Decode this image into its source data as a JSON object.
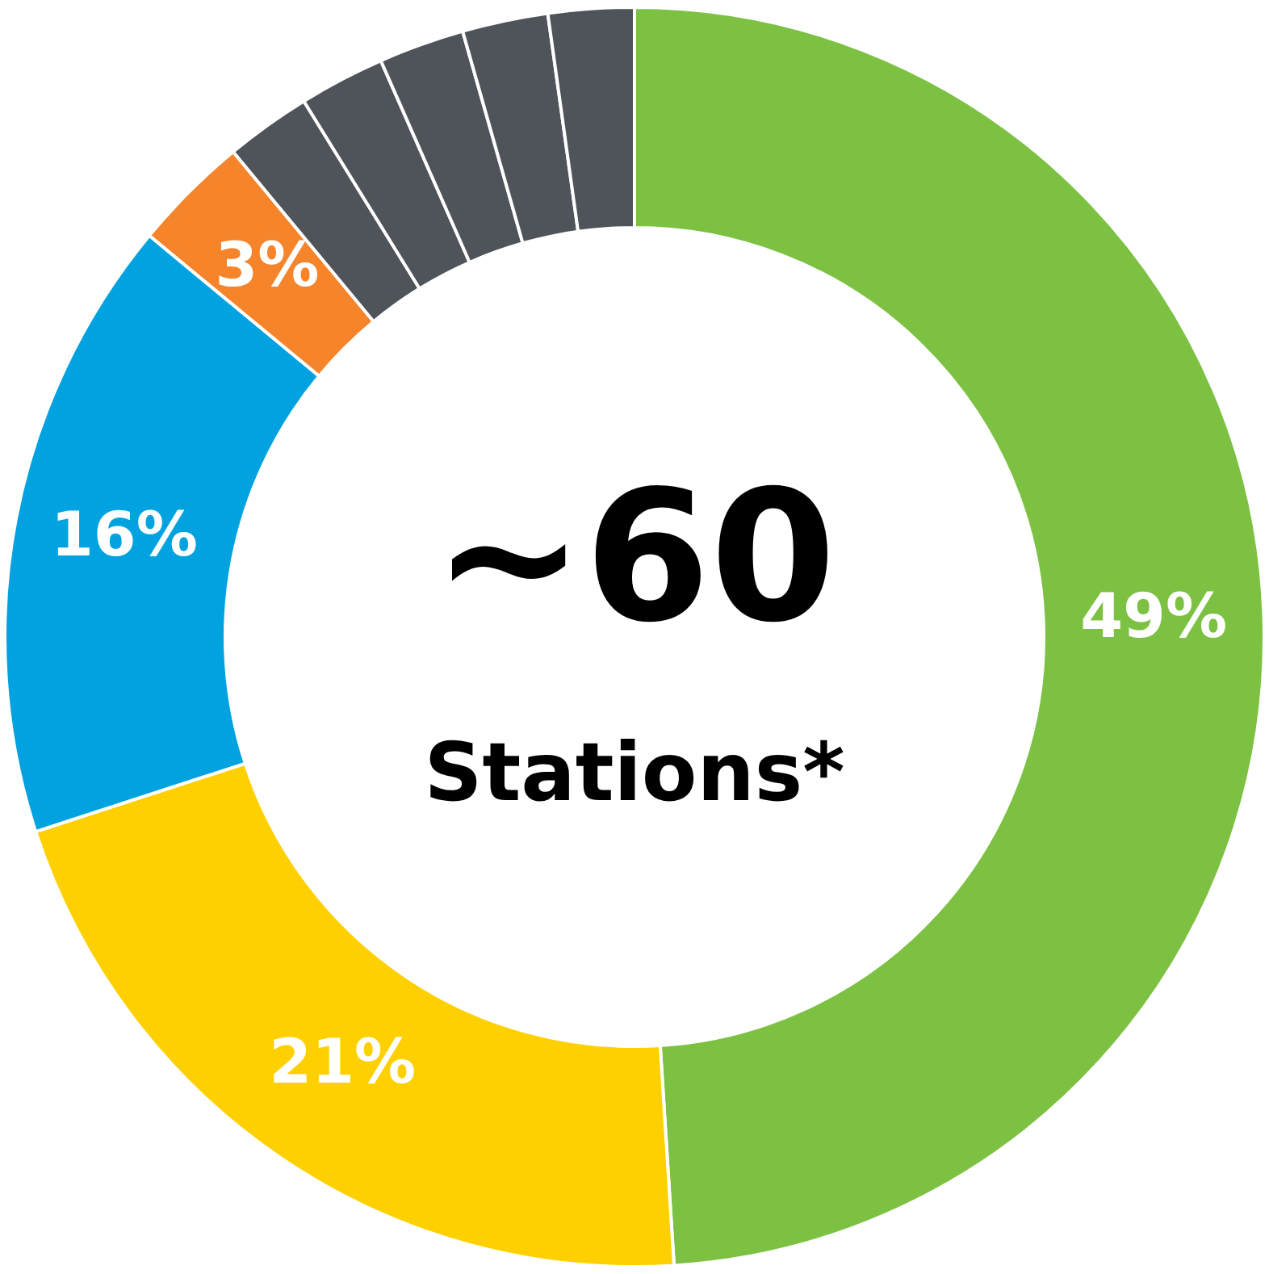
{
  "chart_data": {
    "type": "donut",
    "categories": [
      null,
      null,
      null,
      null,
      null,
      null,
      null,
      null,
      null
    ],
    "values": [
      49,
      21,
      16,
      3,
      2.2,
      2.2,
      2.2,
      2.2,
      2.2
    ],
    "colors": [
      "#7dc143",
      "#ffd000",
      "#00a3e0",
      "#f5842a",
      "#4f535a",
      "#4f535a",
      "#4f535a",
      "#4f535a",
      "#4f535a"
    ],
    "value_labels": [
      "49%",
      "21%",
      "16%",
      "3%",
      null,
      null,
      null,
      null,
      null
    ],
    "annotations": [
      "~60",
      "Stations*"
    ],
    "legend": false
  }
}
